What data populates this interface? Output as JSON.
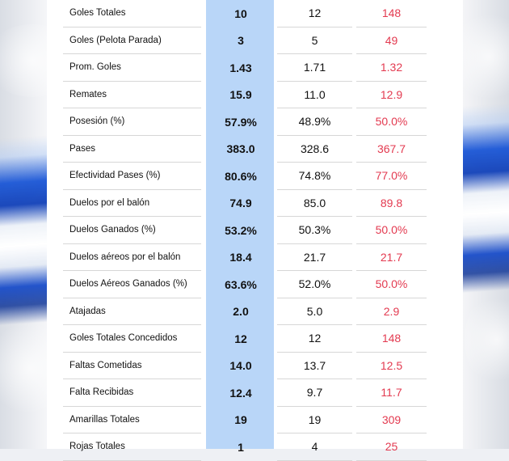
{
  "table": {
    "rows": [
      {
        "label": "Goles Totales",
        "v1": "10",
        "v2": "12",
        "v3": "148"
      },
      {
        "label": "Goles (Pelota Parada)",
        "v1": "3",
        "v2": "5",
        "v3": "49"
      },
      {
        "label": "Prom. Goles",
        "v1": "1.43",
        "v2": "1.71",
        "v3": "1.32"
      },
      {
        "label": "Remates",
        "v1": "15.9",
        "v2": "11.0",
        "v3": "12.9"
      },
      {
        "label": "Posesión (%)",
        "v1": "57.9%",
        "v2": "48.9%",
        "v3": "50.0%"
      },
      {
        "label": "Pases",
        "v1": "383.0",
        "v2": "328.6",
        "v3": "367.7"
      },
      {
        "label": "Efectividad Pases (%)",
        "v1": "80.6%",
        "v2": "74.8%",
        "v3": "77.0%"
      },
      {
        "label": "Duelos por el balón",
        "v1": "74.9",
        "v2": "85.0",
        "v3": "89.8"
      },
      {
        "label": "Duelos Ganados (%)",
        "v1": "53.2%",
        "v2": "50.3%",
        "v3": "50.0%"
      },
      {
        "label": "Duelos aéreos por el balón",
        "v1": "18.4",
        "v2": "21.7",
        "v3": "21.7"
      },
      {
        "label": "Duelos Aéreos Ganados (%)",
        "v1": "63.6%",
        "v2": "52.0%",
        "v3": "50.0%"
      },
      {
        "label": "Atajadas",
        "v1": "2.0",
        "v2": "5.0",
        "v3": "2.9"
      },
      {
        "label": "Goles Totales Concedidos",
        "v1": "12",
        "v2": "12",
        "v3": "148"
      },
      {
        "label": "Faltas Cometidas",
        "v1": "14.0",
        "v2": "13.7",
        "v3": "12.5"
      },
      {
        "label": "Falta Recibidas",
        "v1": "12.4",
        "v2": "9.7",
        "v3": "11.7"
      },
      {
        "label": "Amarillas Totales",
        "v1": "19",
        "v2": "19",
        "v3": "309"
      },
      {
        "label": "Rojas Totales",
        "v1": "1",
        "v2": "4",
        "v3": "25"
      }
    ]
  },
  "colors": {
    "highlight_column": "#b9d6f8",
    "comparison_value": "#e33a50",
    "text": "#111111",
    "divider": "#d7d7d7"
  }
}
